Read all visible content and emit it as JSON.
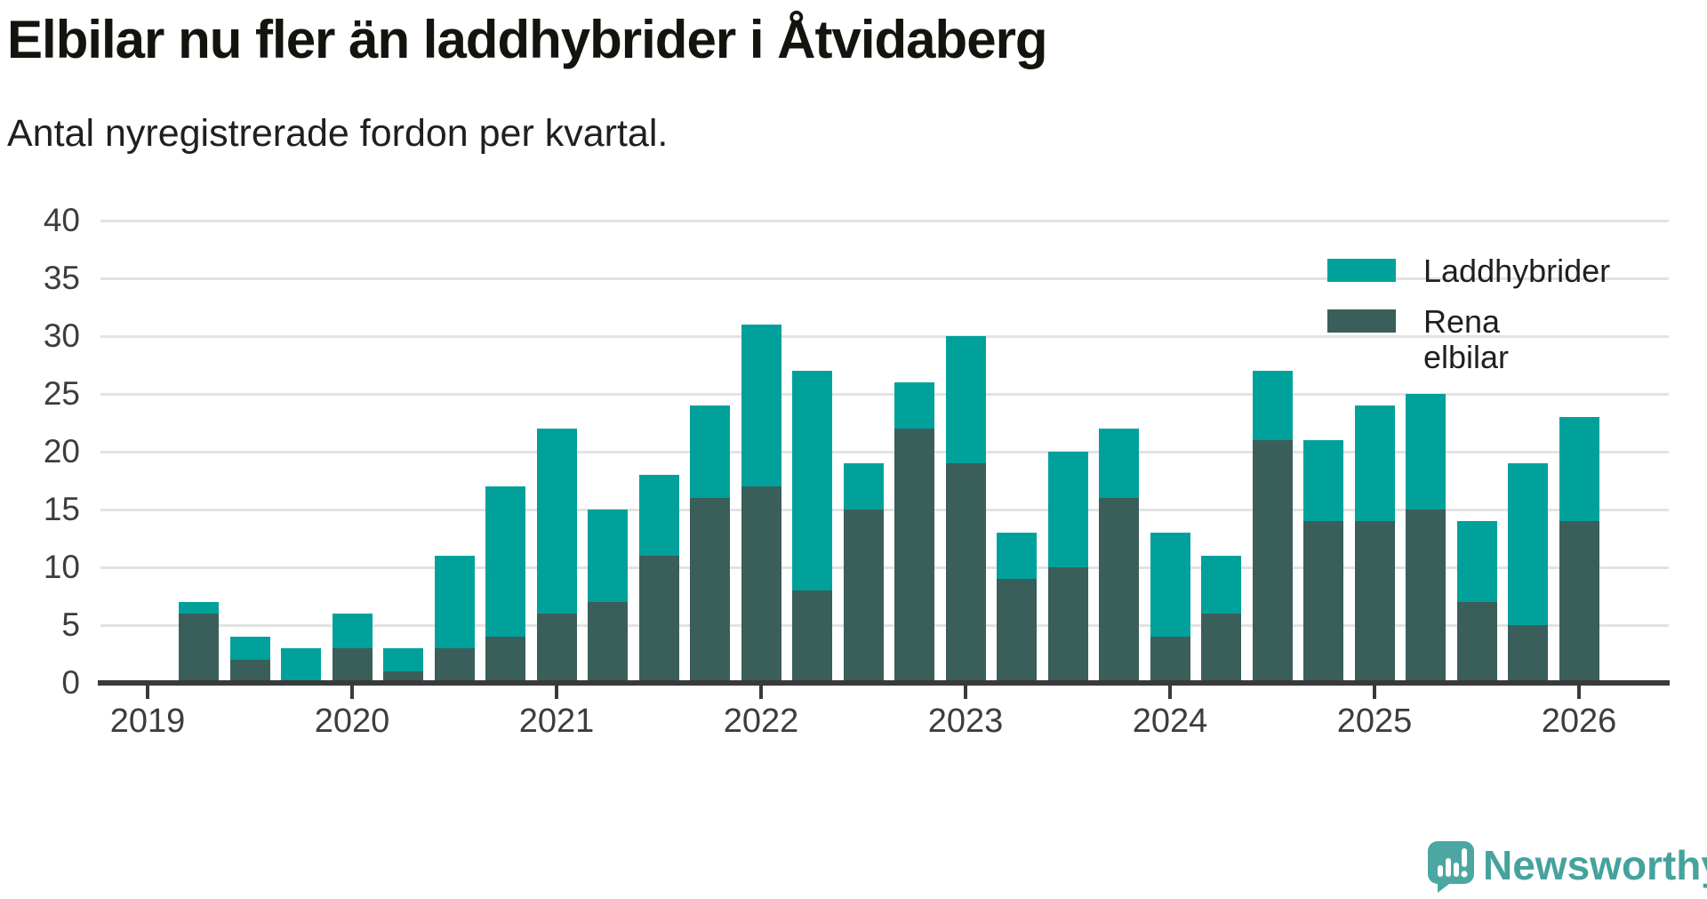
{
  "title": "Elbilar nu fler än laddhybrider i Åtvidaberg",
  "subtitle": "Antal nyregistrerade fordon per kvartal.",
  "legend": {
    "items": [
      {
        "label": "Laddhybrider",
        "color": "#00a19b"
      },
      {
        "label": "Rena elbilar",
        "color": "#3a5f5a"
      }
    ]
  },
  "chart_data": {
    "type": "bar",
    "stacked": true,
    "title": "Elbilar nu fler än laddhybrider i Åtvidaberg",
    "subtitle": "Antal nyregistrerade fordon per kvartal.",
    "xlabel": "",
    "ylabel": "",
    "ylim": [
      0,
      40
    ],
    "yticks": [
      0,
      5,
      10,
      15,
      20,
      25,
      30,
      35,
      40
    ],
    "grid": "horizontal",
    "legend_position": "top-right",
    "xtick_year_labels": [
      "2019",
      "2020",
      "2021",
      "2022",
      "2023",
      "2024",
      "2025",
      "2026"
    ],
    "categories": [
      "2019 Q1",
      "2019 Q2",
      "2019 Q3",
      "2019 Q4",
      "2020 Q1",
      "2020 Q2",
      "2020 Q3",
      "2020 Q4",
      "2021 Q1",
      "2021 Q2",
      "2021 Q3",
      "2021 Q4",
      "2022 Q1",
      "2022 Q2",
      "2022 Q3",
      "2022 Q4",
      "2023 Q1",
      "2023 Q2",
      "2023 Q3",
      "2023 Q4",
      "2024 Q1",
      "2024 Q2",
      "2024 Q3",
      "2024 Q4",
      "2025 Q1",
      "2025 Q2",
      "2025 Q3",
      "2025 Q4",
      "2026 Q1"
    ],
    "stack_bottom_to_top": [
      "Rena elbilar",
      "Laddhybrider"
    ],
    "series": [
      {
        "name": "Laddhybrider",
        "color": "#00a19b",
        "values": [
          0,
          1,
          2,
          3,
          3,
          2,
          8,
          13,
          16,
          8,
          7,
          8,
          14,
          19,
          4,
          4,
          11,
          4,
          10,
          6,
          9,
          5,
          6,
          7,
          10,
          10,
          7,
          14,
          9
        ]
      },
      {
        "name": "Rena elbilar",
        "color": "#3a5f5a",
        "values": [
          0,
          6,
          2,
          0,
          3,
          1,
          3,
          4,
          6,
          7,
          11,
          16,
          17,
          8,
          15,
          22,
          19,
          9,
          10,
          16,
          4,
          6,
          21,
          14,
          14,
          15,
          7,
          5,
          14
        ]
      }
    ],
    "totals": [
      0,
      7,
      4,
      3,
      6,
      3,
      11,
      17,
      22,
      15,
      18,
      24,
      31,
      27,
      19,
      26,
      30,
      13,
      20,
      22,
      13,
      11,
      27,
      21,
      24,
      25,
      14,
      19,
      23
    ]
  },
  "branding": {
    "logo_text": "Newsworthy",
    "logo_text_color": "#45a29d",
    "logo_icon_color": "#4ca6a2"
  }
}
